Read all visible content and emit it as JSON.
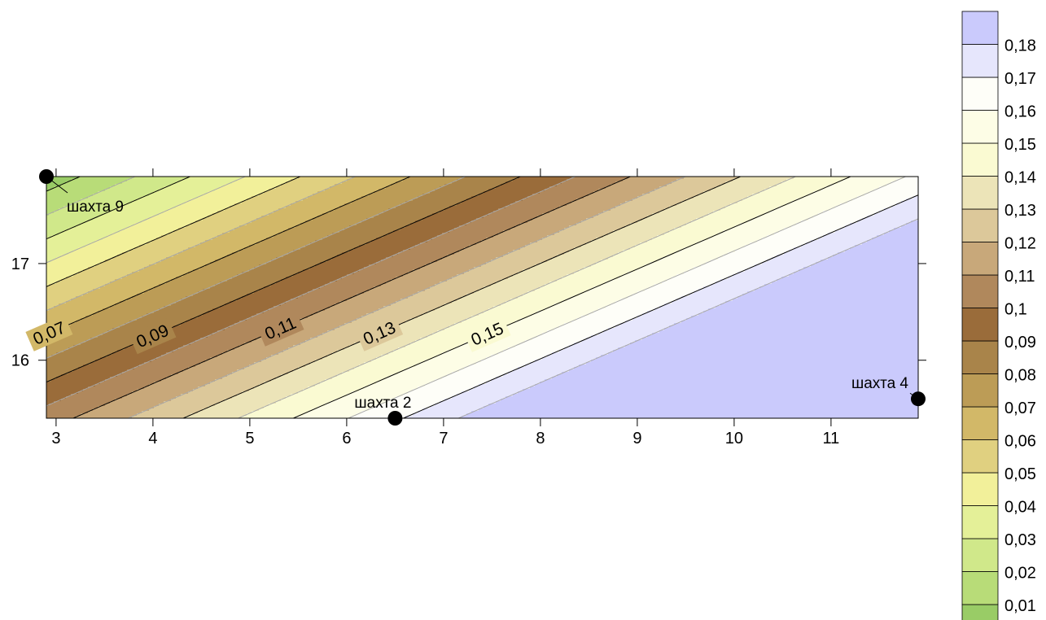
{
  "chart_data": {
    "type": "contour",
    "title": "",
    "xlabel": "",
    "ylabel": "",
    "xlim": [
      2.9,
      11.9
    ],
    "ylim": [
      15.4,
      17.9
    ],
    "x_ticks": [
      "3",
      "4",
      "5",
      "6",
      "7",
      "8",
      "9",
      "10",
      "11"
    ],
    "y_ticks": [
      "16",
      "17"
    ],
    "gradient_direction": "value increases from upper-left toward lower-right",
    "levels": [
      0.01,
      0.02,
      0.03,
      0.04,
      0.05,
      0.06,
      0.07,
      0.08,
      0.09,
      0.1,
      0.11,
      0.12,
      0.13,
      0.14,
      0.15,
      0.16,
      0.17,
      0.18
    ],
    "level_labels": [
      "0,01",
      "0,02",
      "0,03",
      "0,04",
      "0,05",
      "0,06",
      "0,07",
      "0,08",
      "0,09",
      "0,1",
      "0,11",
      "0,12",
      "0,13",
      "0,14",
      "0,15",
      "0,16",
      "0,17",
      "0,18"
    ],
    "colors": [
      "#99cc66",
      "#b8dc78",
      "#d0e88a",
      "#e4f098",
      "#f2f09a",
      "#e0d080",
      "#d2b868",
      "#bc9c56",
      "#a9844a",
      "#9a6c3a",
      "#b0885c",
      "#c8a87a",
      "#dcc89a",
      "#ece4b8",
      "#fafad2",
      "#fdfde6",
      "#fefef8",
      "#e6e6fc",
      "#cacafc"
    ],
    "contour_labels": [
      {
        "text": "0,07",
        "value": 0.07
      },
      {
        "text": "0,09",
        "value": 0.09
      },
      {
        "text": "0,11",
        "value": 0.11
      },
      {
        "text": "0,13",
        "value": 0.13
      },
      {
        "text": "0,15",
        "value": 0.15
      }
    ],
    "wells": [
      {
        "name": "шахта 9",
        "x": 2.9,
        "y": 17.9
      },
      {
        "name": "шахта 2",
        "x": 6.5,
        "y": 15.4
      },
      {
        "name": "шахта 4",
        "x": 11.9,
        "y": 15.6
      }
    ]
  }
}
